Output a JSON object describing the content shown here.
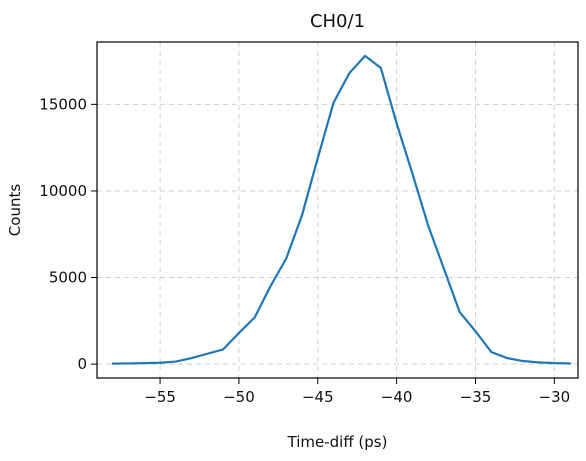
{
  "chart_data": {
    "type": "line",
    "title": "CH0/1",
    "xlabel": "Time-diff (ps)",
    "ylabel": "Counts",
    "xlim": [
      -59,
      -28.5
    ],
    "ylim": [
      -800,
      18600
    ],
    "xticks": [
      -55,
      -50,
      -45,
      -40,
      -35,
      -30
    ],
    "yticks": [
      0,
      5000,
      10000,
      15000
    ],
    "xtick_labels": [
      "−55",
      "−50",
      "−45",
      "−40",
      "−35",
      "−30"
    ],
    "ytick_labels": [
      "0",
      "5000",
      "10000",
      "15000"
    ],
    "grid": true,
    "color": "#1f77b4",
    "series": [
      {
        "x": [
          -58,
          -57,
          -56,
          -55,
          -54,
          -53,
          -52,
          -51,
          -50,
          -49,
          -48,
          -47,
          -46,
          -45,
          -44,
          -43,
          -42,
          -41,
          -40,
          -39,
          -38,
          -37,
          -36,
          -35,
          -34,
          -33,
          -32,
          -31,
          -30,
          -29
        ],
        "values": [
          30,
          40,
          60,
          80,
          150,
          350,
          600,
          850,
          1800,
          2700,
          4500,
          6100,
          8600,
          11900,
          15100,
          16800,
          17800,
          17100,
          13900,
          11000,
          8000,
          5500,
          3000,
          1900,
          700,
          350,
          180,
          100,
          60,
          40
        ]
      }
    ]
  }
}
